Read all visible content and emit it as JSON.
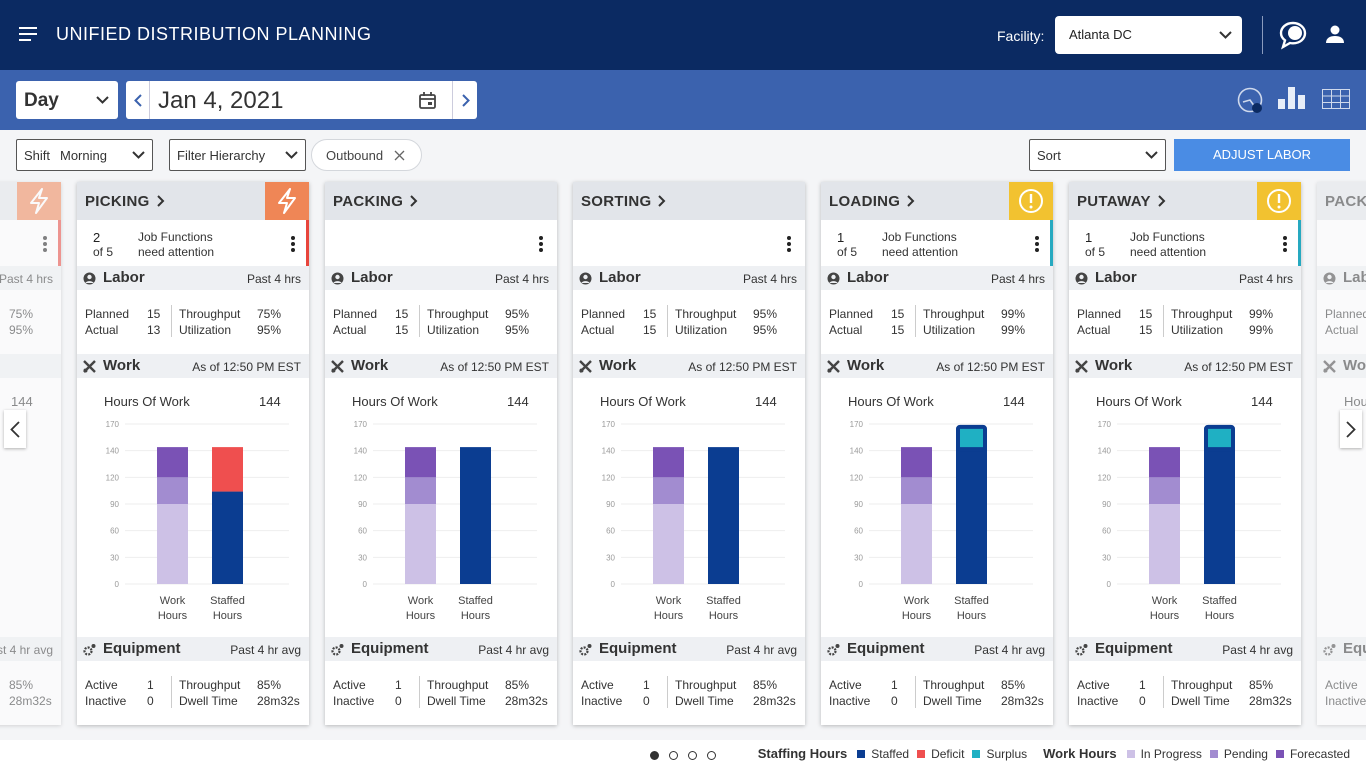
{
  "header": {
    "title": "UNIFIED DISTRIBUTION PLANNING",
    "facility_label": "Facility:",
    "facility": "Atlanta DC"
  },
  "toolbar": {
    "period": "Day",
    "date": "Jan 4, 2021"
  },
  "filters": {
    "shift": {
      "label": "Shift",
      "value": "Morning"
    },
    "hierarchy": "Filter Hierarchy",
    "chip": "Outbound",
    "sort": "Sort",
    "action": "ADJUST LABOR"
  },
  "cards": [
    {
      "alert": {
        "icon": "bolt",
        "color": "#ef8656"
      },
      "border": "#e8453c",
      "labor": {
        "period": "Past 4 hrs",
        "metrics": [
          {
            "value": "75%"
          },
          {
            "value": "95%"
          }
        ]
      },
      "work": {
        "chart": {
          "total": 144
        }
      },
      "equipment": {
        "period": "Past 4 hr avg",
        "metrics": [
          {
            "value": "85%"
          },
          {
            "value": "28m32s"
          }
        ]
      }
    },
    {
      "title": "PICKING",
      "alert": {
        "icon": "bolt",
        "color": "#ef8656"
      },
      "border": "#e8453c",
      "attention": {
        "count": 2,
        "of": "of 5",
        "lines": [
          "Job Functions",
          "need attention"
        ]
      },
      "labor": {
        "label": "Labor",
        "period": "Past 4 hrs",
        "rows": [
          {
            "label": "Planned",
            "value": 15
          },
          {
            "label": "Actual",
            "value": 13
          }
        ],
        "metrics": [
          {
            "label": "Throughput",
            "value": "75%"
          },
          {
            "label": "Utilization",
            "value": "95%"
          }
        ]
      },
      "work": {
        "label": "Work",
        "as_of": "As of 12:50 PM EST",
        "chart": {
          "title": "Hours Of Work",
          "total": 144,
          "ylim": [
            0,
            170
          ],
          "yticks": [
            0,
            30,
            60,
            90,
            120,
            140,
            170
          ],
          "categories": [
            "Work Hours",
            "Staffed Hours"
          ],
          "work_hours": [
            90,
            30,
            24
          ],
          "staffing_hours": [
            104,
            40,
            null
          ]
        }
      },
      "equipment": {
        "label": "Equipment",
        "period": "Past 4 hr avg",
        "rows": [
          {
            "label": "Active",
            "value": 1
          },
          {
            "label": "Inactive",
            "value": 0
          }
        ],
        "metrics": [
          {
            "label": "Throughput",
            "value": "85%"
          },
          {
            "label": "Dwell Time",
            "value": "28m32s"
          }
        ]
      }
    },
    {
      "title": "PACKING",
      "labor": {
        "label": "Labor",
        "period": "Past 4 hrs",
        "rows": [
          {
            "label": "Planned",
            "value": 15
          },
          {
            "label": "Actual",
            "value": 15
          }
        ],
        "metrics": [
          {
            "label": "Throughput",
            "value": "95%"
          },
          {
            "label": "Utilization",
            "value": "95%"
          }
        ]
      },
      "work": {
        "label": "Work",
        "as_of": "As of 12:50 PM EST",
        "chart": {
          "title": "Hours Of Work",
          "total": 144,
          "ylim": [
            0,
            170
          ],
          "yticks": [
            0,
            30,
            60,
            90,
            120,
            140,
            170
          ],
          "categories": [
            "Work Hours",
            "Staffed Hours"
          ],
          "work_hours": [
            90,
            30,
            24
          ],
          "staffing_hours": [
            144,
            null,
            null
          ]
        }
      },
      "equipment": {
        "label": "Equipment",
        "period": "Past 4 hr avg",
        "rows": [
          {
            "label": "Active",
            "value": 1
          },
          {
            "label": "Inactive",
            "value": 0
          }
        ],
        "metrics": [
          {
            "label": "Throughput",
            "value": "85%"
          },
          {
            "label": "Dwell Time",
            "value": "28m32s"
          }
        ]
      }
    },
    {
      "title": "SORTING",
      "labor": {
        "label": "Labor",
        "period": "Past 4 hrs",
        "rows": [
          {
            "label": "Planned",
            "value": 15
          },
          {
            "label": "Actual",
            "value": 15
          }
        ],
        "metrics": [
          {
            "label": "Throughput",
            "value": "95%"
          },
          {
            "label": "Utilization",
            "value": "95%"
          }
        ]
      },
      "work": {
        "label": "Work",
        "as_of": "As of 12:50 PM EST",
        "chart": {
          "title": "Hours Of Work",
          "total": 144,
          "ylim": [
            0,
            170
          ],
          "yticks": [
            0,
            30,
            60,
            90,
            120,
            140,
            170
          ],
          "categories": [
            "Work Hours",
            "Staffed Hours"
          ],
          "work_hours": [
            90,
            30,
            24
          ],
          "staffing_hours": [
            144,
            null,
            null
          ]
        }
      },
      "equipment": {
        "label": "Equipment",
        "period": "Past 4 hr avg",
        "rows": [
          {
            "label": "Active",
            "value": 1
          },
          {
            "label": "Inactive",
            "value": 0
          }
        ],
        "metrics": [
          {
            "label": "Throughput",
            "value": "85%"
          },
          {
            "label": "Dwell Time",
            "value": "28m32s"
          }
        ]
      }
    },
    {
      "title": "LOADING",
      "alert": {
        "icon": "warn",
        "color": "#f2c230"
      },
      "border": "#26a9c0",
      "attention": {
        "count": 1,
        "of": "of 5",
        "lines": [
          "Job Functions",
          "need attention"
        ]
      },
      "labor": {
        "label": "Labor",
        "period": "Past 4 hrs",
        "rows": [
          {
            "label": "Planned",
            "value": 15
          },
          {
            "label": "Actual",
            "value": 15
          }
        ],
        "metrics": [
          {
            "label": "Throughput",
            "value": "99%"
          },
          {
            "label": "Utilization",
            "value": "99%"
          }
        ]
      },
      "work": {
        "label": "Work",
        "as_of": "As of 12:50 PM EST",
        "chart": {
          "title": "Hours Of Work",
          "total": 144,
          "ylim": [
            0,
            170
          ],
          "yticks": [
            0,
            30,
            60,
            90,
            120,
            140,
            170
          ],
          "categories": [
            "Work Hours",
            "Staffed Hours"
          ],
          "work_hours": [
            90,
            30,
            24
          ],
          "staffing_hours": [
            144,
            null,
            25
          ]
        }
      },
      "equipment": {
        "label": "Equipment",
        "period": "Past 4 hr avg",
        "rows": [
          {
            "label": "Active",
            "value": 1
          },
          {
            "label": "Inactive",
            "value": 0
          }
        ],
        "metrics": [
          {
            "label": "Throughput",
            "value": "85%"
          },
          {
            "label": "Dwell Time",
            "value": "28m32s"
          }
        ]
      }
    },
    {
      "title": "PUTAWAY",
      "alert": {
        "icon": "warn",
        "color": "#f2c230"
      },
      "border": "#26a9c0",
      "attention": {
        "count": 1,
        "of": "of 5",
        "lines": [
          "Job Functions",
          "need attention"
        ]
      },
      "labor": {
        "label": "Labor",
        "period": "Past 4 hrs",
        "rows": [
          {
            "label": "Planned",
            "value": 15
          },
          {
            "label": "Actual",
            "value": 15
          }
        ],
        "metrics": [
          {
            "label": "Throughput",
            "value": "99%"
          },
          {
            "label": "Utilization",
            "value": "99%"
          }
        ]
      },
      "work": {
        "label": "Work",
        "as_of": "As of 12:50 PM EST",
        "chart": {
          "title": "Hours Of Work",
          "total": 144,
          "ylim": [
            0,
            170
          ],
          "yticks": [
            0,
            30,
            60,
            90,
            120,
            140,
            170
          ],
          "categories": [
            "Work Hours",
            "Staffed Hours"
          ],
          "work_hours": [
            90,
            30,
            24
          ],
          "staffing_hours": [
            144,
            null,
            25
          ]
        }
      },
      "equipment": {
        "label": "Equipment",
        "period": "Past 4 hr avg",
        "rows": [
          {
            "label": "Active",
            "value": 1
          },
          {
            "label": "Inactive",
            "value": 0
          }
        ],
        "metrics": [
          {
            "label": "Throughput",
            "value": "85%"
          },
          {
            "label": "Dwell Time",
            "value": "28m32s"
          }
        ]
      }
    },
    {
      "title": "PACKING",
      "labor": {
        "label": "Labor",
        "rows": [
          {
            "label": "Planned"
          },
          {
            "label": "Actual"
          }
        ]
      },
      "work": {
        "label": "Work",
        "chart": {
          "title": "Hours Of Work"
        }
      },
      "equipment": {
        "label": "Equipment",
        "rows": [
          {
            "label": "Active"
          },
          {
            "label": "Inactive"
          }
        ]
      }
    }
  ],
  "legend": {
    "page_dots": 4,
    "active_dot": 0,
    "groups": [
      {
        "title": "Staffing Hours",
        "items": [
          {
            "name": "Staffed",
            "color": "#0b3d91"
          },
          {
            "name": "Deficit",
            "color": "#ef4f4f"
          },
          {
            "name": "Surplus",
            "color": "#1fb0c3"
          }
        ]
      },
      {
        "title": "Work Hours",
        "items": [
          {
            "name": "In Progress",
            "color": "#cdc1e6"
          },
          {
            "name": "Pending",
            "color": "#a28cd0"
          },
          {
            "name": "Forecasted",
            "color": "#7a52b5"
          }
        ]
      }
    ]
  }
}
